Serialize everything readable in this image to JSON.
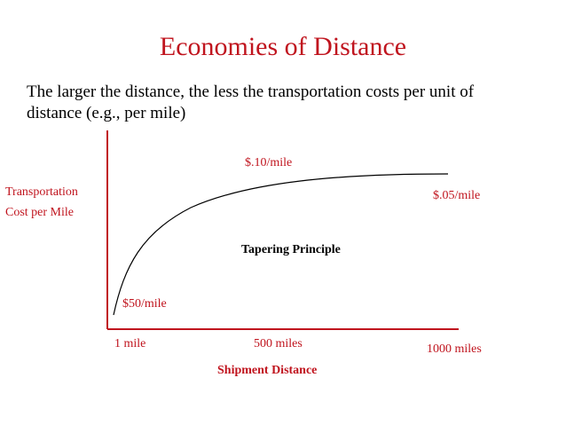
{
  "slide": {
    "title": "Economies of Distance",
    "subtitle": "The larger the distance, the less the transportation costs per unit of distance (e.g., per mile)"
  },
  "colors": {
    "accent": "#c0141e",
    "curve": "#000000"
  },
  "diagram": {
    "y_axis_label_line1": "Transportation",
    "y_axis_label_line2": "Cost per Mile",
    "x_axis_label": "Shipment Distance",
    "x_ticks": [
      "1 mile",
      "500 miles",
      "1000 miles"
    ],
    "rate_labels": {
      "start": "$50/mile",
      "mid": "$.10/mile",
      "end": "$.05/mile"
    },
    "principle_label": "Tapering Principle"
  }
}
